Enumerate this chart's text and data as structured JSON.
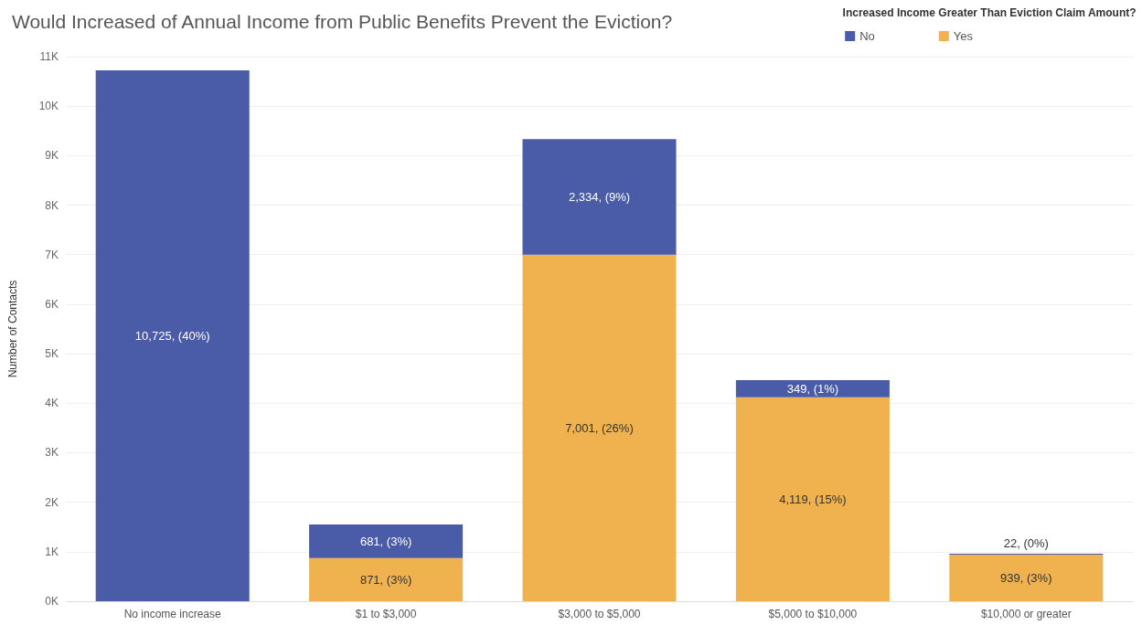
{
  "chart_data": {
    "type": "bar",
    "stacked": true,
    "title": "Would Increased of Annual Income from Public Benefits Prevent the Eviction?",
    "ylabel": "Number of Contacts",
    "legend_title": "Increased Income Greater Than Eviction Claim Amount?",
    "categories": [
      "No income increase",
      "$1 to $3,000",
      "$3,000 to $5,000",
      "$5,000 to $10,000",
      "$10,000 or greater"
    ],
    "series": [
      {
        "name": "Yes",
        "color": "#f0b24e",
        "values": [
          null,
          871,
          7001,
          4119,
          939
        ],
        "value_labels": [
          null,
          "871, (3%)",
          "7,001, (26%)",
          "4,119, (15%)",
          "939, (3%)"
        ]
      },
      {
        "name": "No",
        "color": "#4a5ba8",
        "values": [
          10725,
          681,
          2334,
          349,
          22
        ],
        "value_labels": [
          "10,725, (40%)",
          "681, (3%)",
          "2,334, (9%)",
          "349, (1%)",
          "22, (0%)"
        ]
      }
    ],
    "ylim": [
      0,
      11000
    ],
    "yticks": [
      {
        "value": 0,
        "label": "0K"
      },
      {
        "value": 1000,
        "label": "1K"
      },
      {
        "value": 2000,
        "label": "2K"
      },
      {
        "value": 3000,
        "label": "3K"
      },
      {
        "value": 4000,
        "label": "4K"
      },
      {
        "value": 5000,
        "label": "5K"
      },
      {
        "value": 6000,
        "label": "6K"
      },
      {
        "value": 7000,
        "label": "7K"
      },
      {
        "value": 8000,
        "label": "8K"
      },
      {
        "value": 9000,
        "label": "9K"
      },
      {
        "value": 10000,
        "label": "10K"
      },
      {
        "value": 11000,
        "label": "11K"
      }
    ],
    "grid": "y",
    "legend": "top right"
  }
}
